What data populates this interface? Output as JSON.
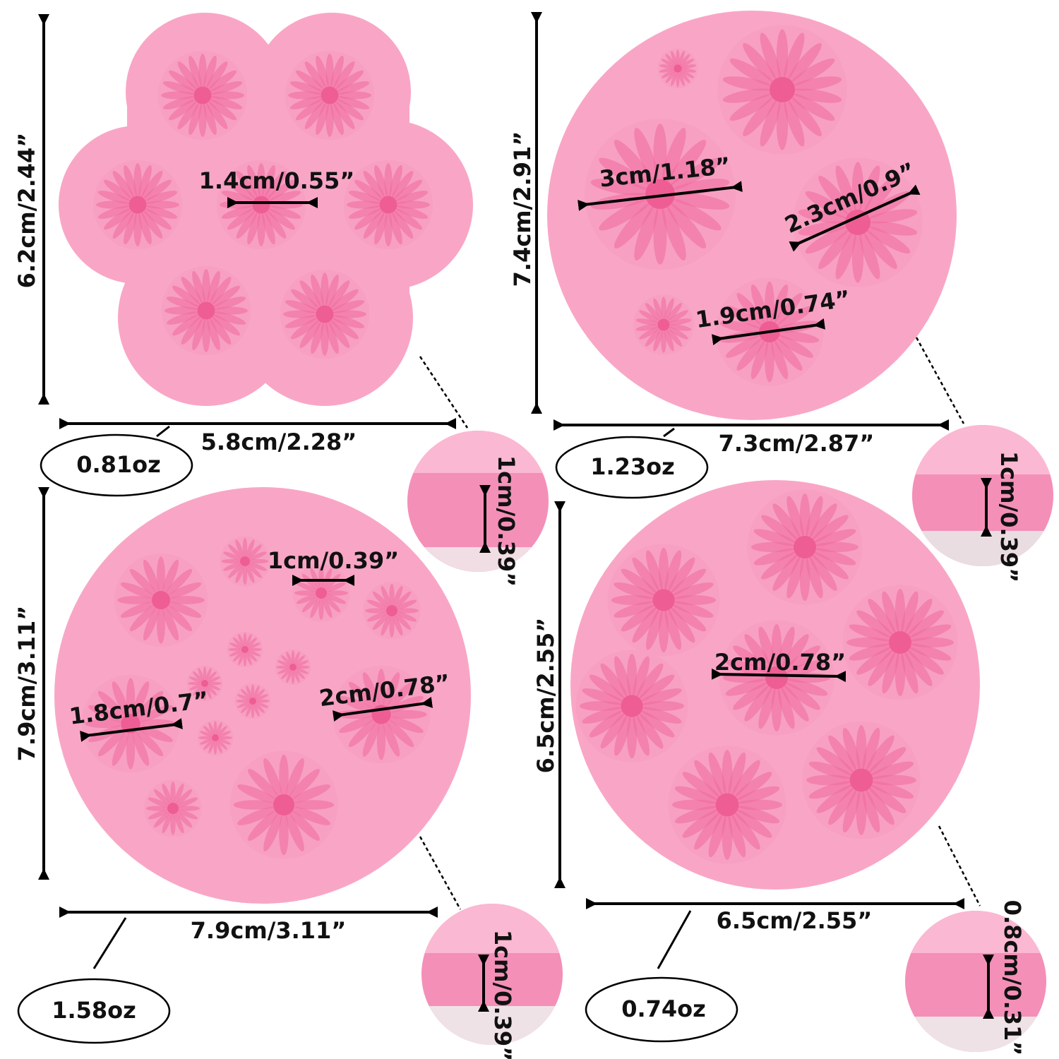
{
  "molds": [
    {
      "height": "6.2cm/2.44”",
      "width": "5.8cm/2.28”",
      "weight": "0.81oz",
      "depth": "1cm/0.39”",
      "cavities": [
        "1.4cm/0.55”"
      ]
    },
    {
      "height": "7.4cm/2.91”",
      "width": "7.3cm/2.87”",
      "weight": "1.23oz",
      "depth": "1cm/0.39”",
      "cavities": [
        "3cm/1.18”",
        "2.3cm/0.9”",
        "1.9cm/0.74”"
      ]
    },
    {
      "height": "7.9cm/3.11”",
      "width": "7.9cm/3.11”",
      "weight": "1.58oz",
      "depth": "1cm/0.39”",
      "cavities": [
        "1cm/0.39”",
        "1.8cm/0.7”",
        "2cm/0.78”"
      ]
    },
    {
      "height": "6.5cm/2.55”",
      "width": "6.5cm/2.55”",
      "weight": "0.74oz",
      "depth": "0.8cm/0.31”",
      "cavities": [
        "2cm/0.78”"
      ]
    }
  ]
}
